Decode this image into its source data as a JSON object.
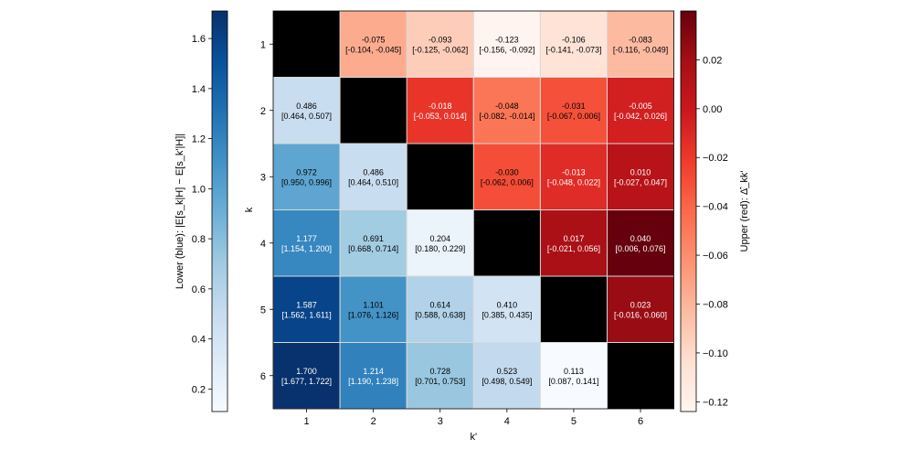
{
  "chart_data": {
    "type": "heatmap",
    "title": "",
    "xlabel": "k'",
    "ylabel": "k",
    "x_categories": [
      "1",
      "2",
      "3",
      "4",
      "5",
      "6"
    ],
    "y_categories": [
      "1",
      "2",
      "3",
      "4",
      "5",
      "6"
    ],
    "diagonal_color": "#000000",
    "lower": {
      "name": "blue",
      "colorbar_label": "Lower (blue): |E[s_k|H] − E[s_k'|H]|",
      "colorbar_range": [
        0.11,
        1.71
      ],
      "colorbar_ticks": [
        "0.2",
        "0.4",
        "0.6",
        "0.8",
        "1.0",
        "1.2",
        "1.4",
        "1.6"
      ],
      "colorbar_tick_values": [
        0.2,
        0.4,
        0.6,
        0.8,
        1.0,
        1.2,
        1.4,
        1.6
      ],
      "cells": [
        {
          "row": 2,
          "col": 1,
          "value": 0.486,
          "ci_text": "[0.464, 0.507]"
        },
        {
          "row": 3,
          "col": 1,
          "value": 0.972,
          "ci_text": "[0.950, 0.996]"
        },
        {
          "row": 3,
          "col": 2,
          "value": 0.486,
          "ci_text": "[0.464, 0.510]"
        },
        {
          "row": 4,
          "col": 1,
          "value": 1.177,
          "ci_text": "[1.154, 1.200]"
        },
        {
          "row": 4,
          "col": 2,
          "value": 0.691,
          "ci_text": "[0.668, 0.714]"
        },
        {
          "row": 4,
          "col": 3,
          "value": 0.204,
          "ci_text": "[0.180, 0.229]"
        },
        {
          "row": 5,
          "col": 1,
          "value": 1.587,
          "ci_text": "[1.562, 1.611]"
        },
        {
          "row": 5,
          "col": 2,
          "value": 1.101,
          "ci_text": "[1.076, 1.126]"
        },
        {
          "row": 5,
          "col": 3,
          "value": 0.614,
          "ci_text": "[0.588, 0.638]"
        },
        {
          "row": 5,
          "col": 4,
          "value": 0.41,
          "ci_text": "[0.385, 0.435]"
        },
        {
          "row": 6,
          "col": 1,
          "value": 1.7,
          "ci_text": "[1.677, 1.722]"
        },
        {
          "row": 6,
          "col": 2,
          "value": 1.214,
          "ci_text": "[1.190, 1.238]"
        },
        {
          "row": 6,
          "col": 3,
          "value": 0.728,
          "ci_text": "[0.701, 0.753]"
        },
        {
          "row": 6,
          "col": 4,
          "value": 0.523,
          "ci_text": "[0.498, 0.549]"
        },
        {
          "row": 6,
          "col": 5,
          "value": 0.113,
          "ci_text": "[0.087, 0.141]"
        }
      ]
    },
    "upper": {
      "name": "red",
      "colorbar_label": "Upper (red): Δ̂_kk'",
      "colorbar_range": [
        -0.124,
        0.04
      ],
      "colorbar_ticks": [
        "−0.12",
        "−0.10",
        "−0.08",
        "−0.06",
        "−0.04",
        "−0.02",
        "0.00",
        "0.02"
      ],
      "colorbar_tick_values": [
        -0.12,
        -0.1,
        -0.08,
        -0.06,
        -0.04,
        -0.02,
        0.0,
        0.02
      ],
      "cells": [
        {
          "row": 1,
          "col": 2,
          "value": -0.075,
          "ci_text": "[-0.104, -0.045]"
        },
        {
          "row": 1,
          "col": 3,
          "value": -0.093,
          "ci_text": "[-0.125, -0.062]"
        },
        {
          "row": 1,
          "col": 4,
          "value": -0.123,
          "ci_text": "[-0.156, -0.092]"
        },
        {
          "row": 1,
          "col": 5,
          "value": -0.106,
          "ci_text": "[-0.141, -0.073]"
        },
        {
          "row": 1,
          "col": 6,
          "value": -0.083,
          "ci_text": "[-0.116, -0.049]"
        },
        {
          "row": 2,
          "col": 3,
          "value": -0.018,
          "ci_text": "[-0.053, 0.014]"
        },
        {
          "row": 2,
          "col": 4,
          "value": -0.048,
          "ci_text": "[-0.082, -0.014]"
        },
        {
          "row": 2,
          "col": 5,
          "value": -0.031,
          "ci_text": "[-0.067, 0.006]"
        },
        {
          "row": 2,
          "col": 6,
          "value": -0.005,
          "ci_text": "[-0.042, 0.026]"
        },
        {
          "row": 3,
          "col": 4,
          "value": -0.03,
          "ci_text": "[-0.062, 0.006]"
        },
        {
          "row": 3,
          "col": 5,
          "value": -0.013,
          "ci_text": "[-0.048, 0.022]"
        },
        {
          "row": 3,
          "col": 6,
          "value": 0.01,
          "ci_text": "[-0.027, 0.047]"
        },
        {
          "row": 4,
          "col": 5,
          "value": 0.017,
          "ci_text": "[-0.021, 0.056]"
        },
        {
          "row": 4,
          "col": 6,
          "value": 0.04,
          "ci_text": "[0.006, 0.076]"
        },
        {
          "row": 5,
          "col": 6,
          "value": 0.023,
          "ci_text": "[-0.016, 0.060]"
        }
      ]
    }
  },
  "colors": {
    "blues": [
      "#f7fbff",
      "#deebf7",
      "#c6dbef",
      "#9ecae1",
      "#6baed6",
      "#4292c6",
      "#2171b5",
      "#08519c",
      "#08306b"
    ],
    "reds": [
      "#fff5f0",
      "#fee0d2",
      "#fcbba1",
      "#fc9272",
      "#fb6a4a",
      "#ef3b2c",
      "#cb181d",
      "#a50f15",
      "#67000d"
    ],
    "cell_border": "#d9d9d9",
    "text_dark": "#000000",
    "text_light": "#ffffff"
  }
}
